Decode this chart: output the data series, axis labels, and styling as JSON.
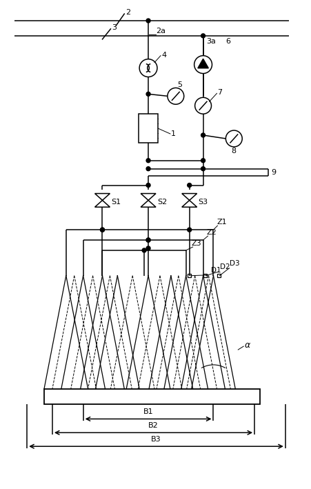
{
  "fig_width": 4.51,
  "fig_height": 7.09,
  "bg_color": "#ffffff",
  "line_color": "#000000",
  "label_2": "2",
  "label_3": "3",
  "label_2a": "2a",
  "label_3a": "3a",
  "label_1": "1",
  "label_4": "4",
  "label_5": "5",
  "label_6": "6",
  "label_7": "7",
  "label_8": "8",
  "label_9": "9",
  "label_S1": "S1",
  "label_S2": "S2",
  "label_S3": "S3",
  "label_Z1": "Z1",
  "label_Z2": "Z2",
  "label_Z3": "Z3",
  "label_D1": "D1",
  "label_D2": "D2",
  "label_D3": "D3",
  "label_B1": "B1",
  "label_B2": "B2",
  "label_B3": "B3",
  "label_alpha": "α"
}
